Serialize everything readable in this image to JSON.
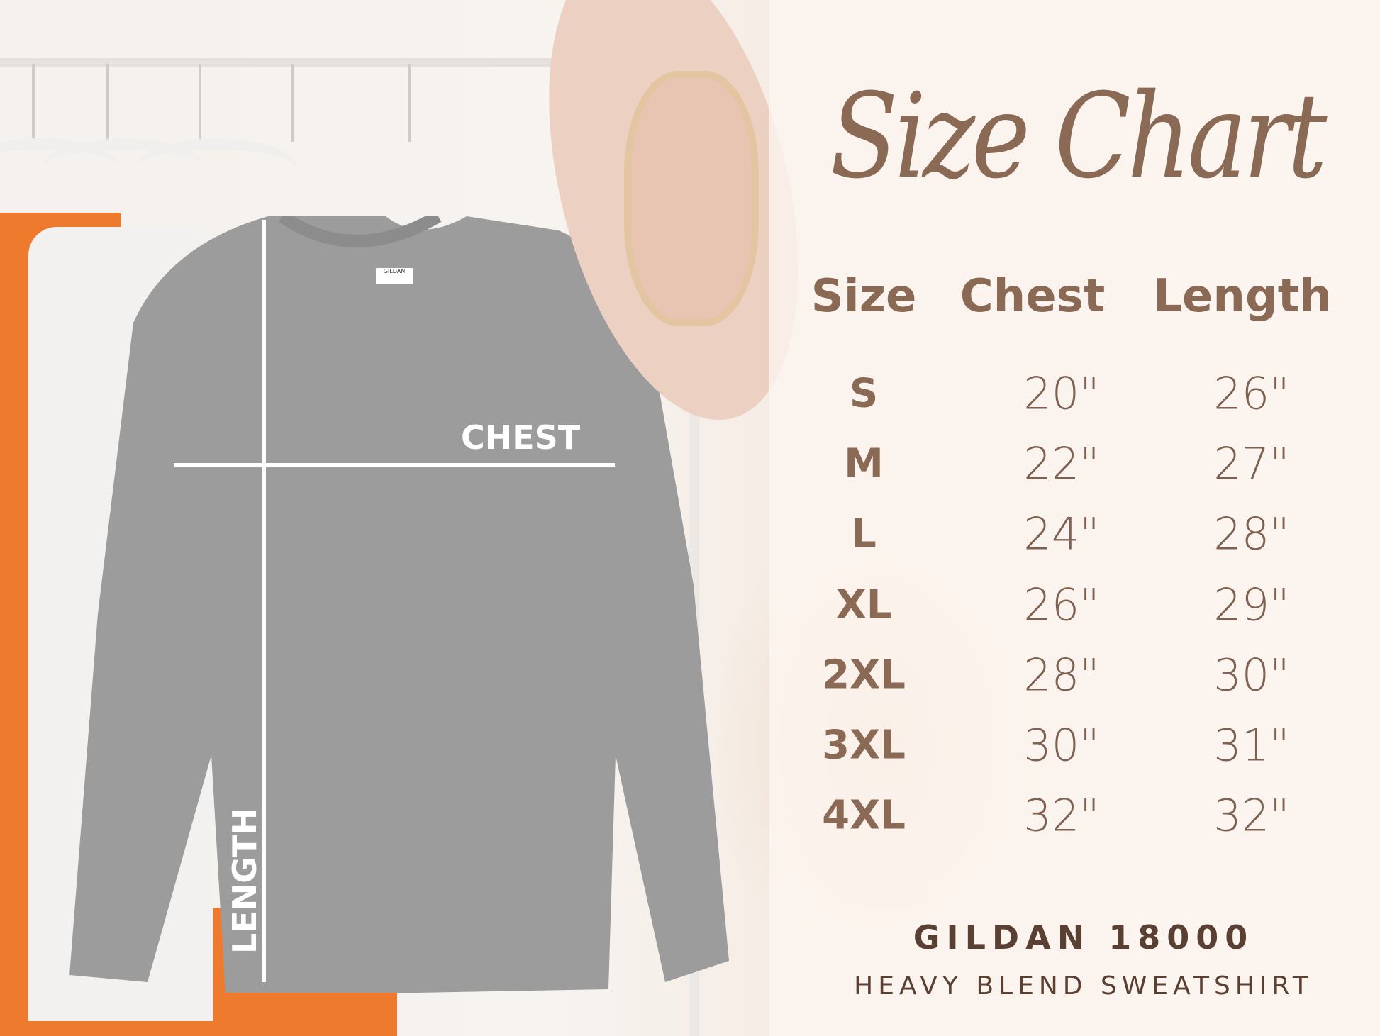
{
  "title": "Size Chart",
  "headers": [
    "Size",
    "Chest",
    "Length"
  ],
  "rows": [
    {
      "size": "S",
      "chest": "20\"",
      "length": "26\""
    },
    {
      "size": "M",
      "chest": "22\"",
      "length": "27\""
    },
    {
      "size": "L",
      "chest": "24\"",
      "length": "28\""
    },
    {
      "size": "XL",
      "chest": "26\"",
      "length": "29\""
    },
    {
      "size": "2XL",
      "chest": "28\"",
      "length": "30\""
    },
    {
      "size": "3XL",
      "chest": "30\"",
      "length": "31\""
    },
    {
      "size": "4XL",
      "chest": "32\"",
      "length": "32\""
    }
  ],
  "diagram": {
    "chest_label": "CHEST",
    "length_label": "LENGTH",
    "tag_text": "GILDAN"
  },
  "brand": {
    "model": "GILDAN 18000",
    "product": "HEAVY BLEND SWEATSHIRT"
  },
  "colors": {
    "text": "#8a6a55",
    "sweatshirt": "#9a9a9a",
    "accent_orange": "#ee7a2e"
  }
}
